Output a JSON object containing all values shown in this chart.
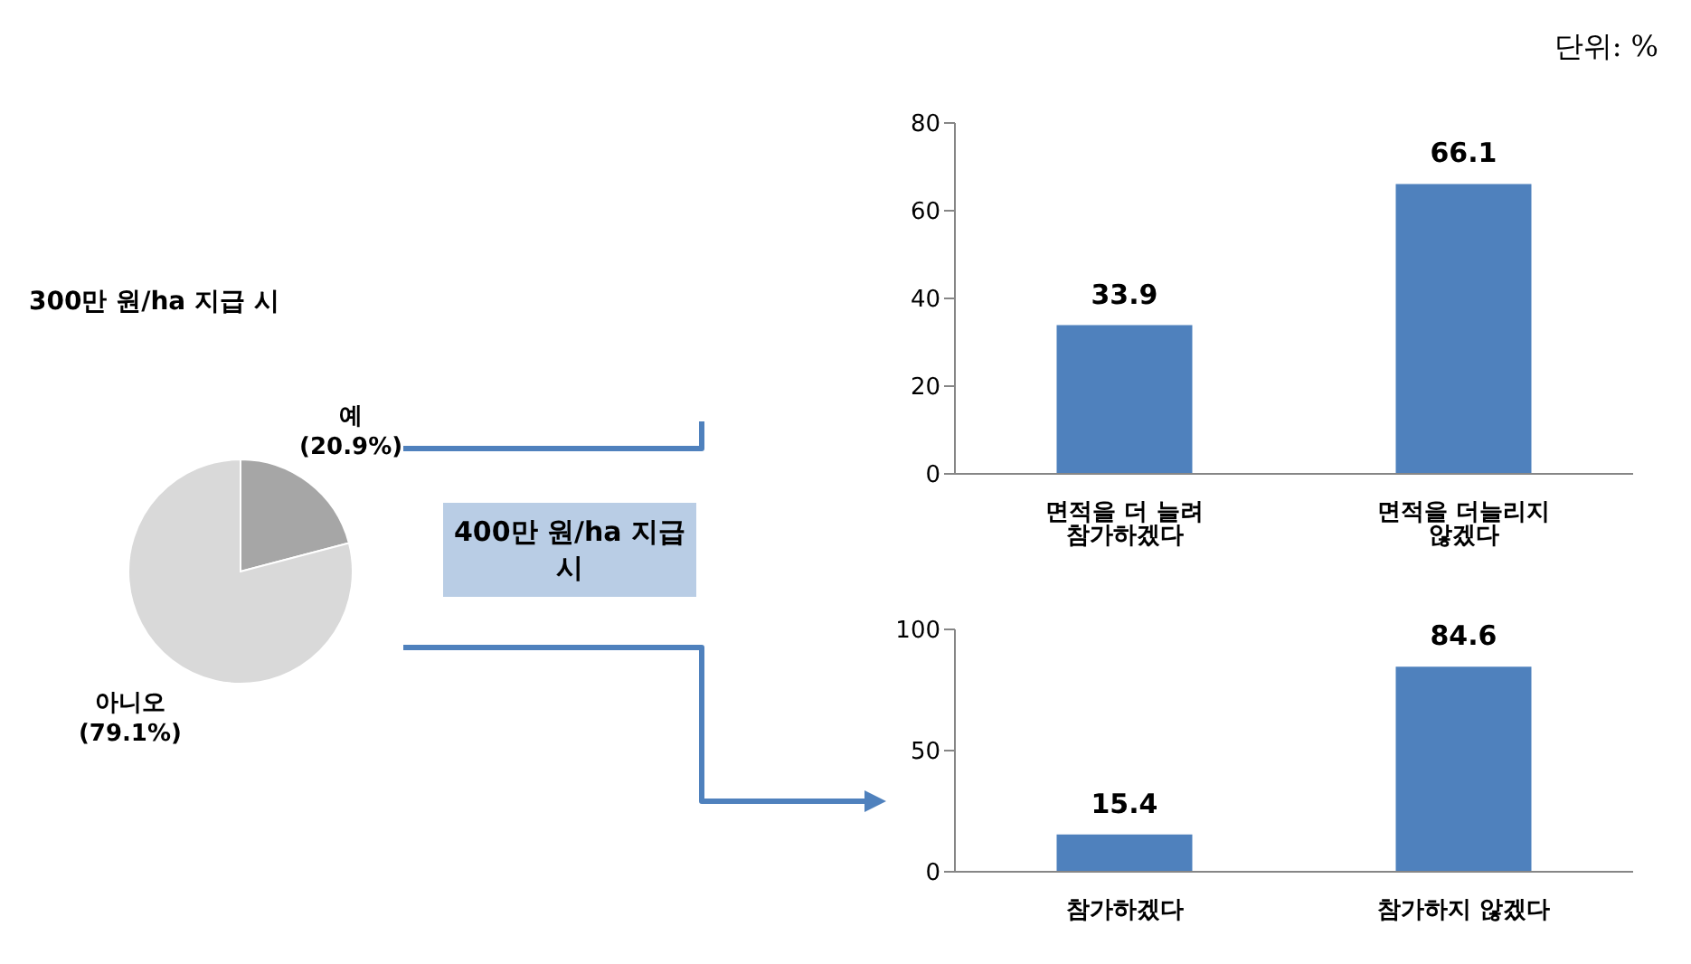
{
  "chart_data": [
    {
      "type": "pie",
      "title": "300만 원/ha 지급 시",
      "categories": [
        "예",
        "아니오"
      ],
      "values": [
        20.9,
        79.1
      ],
      "colors": [
        "#a6a6a6",
        "#d9d9d9"
      ],
      "value_labels": [
        "(20.9%)",
        "(79.1%)"
      ],
      "annotations": [
        "단위: %"
      ]
    },
    {
      "type": "bar",
      "categories": [
        "면적을 더 늘려 참가하겠다",
        "면적을 더늘리지 않겠다"
      ],
      "values": [
        33.9,
        66.1
      ],
      "color": "#4f81bd",
      "ylim": [
        0,
        80
      ],
      "yticks": [
        0,
        20,
        40,
        60,
        80
      ],
      "data_labels": true
    },
    {
      "type": "bar",
      "categories": [
        "참가하겠다",
        "참가하지 않겠다"
      ],
      "values": [
        15.4,
        84.6
      ],
      "color": "#4f81bd",
      "ylim": [
        0,
        100
      ],
      "yticks": [
        0,
        50,
        100
      ],
      "data_labels": true,
      "annotations": [
        "400만 원/ha 지급 시"
      ]
    }
  ]
}
